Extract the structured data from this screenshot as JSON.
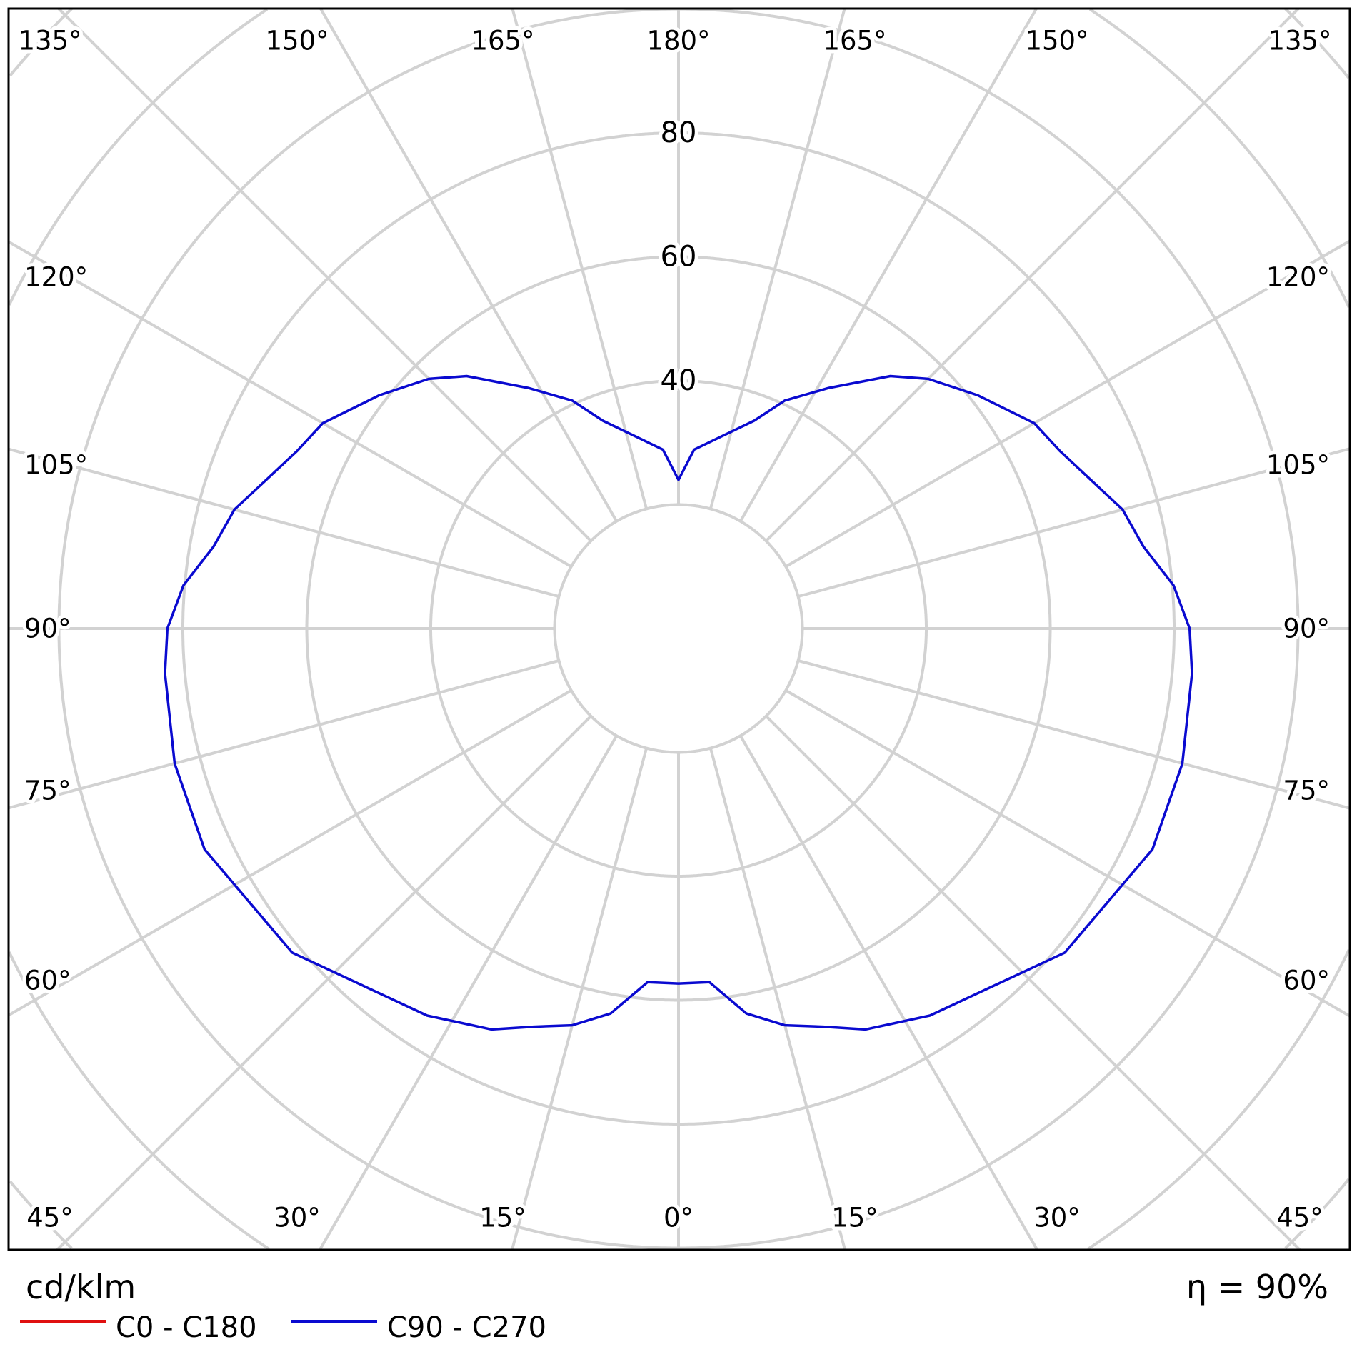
{
  "chart_data": {
    "type": "polar",
    "unit_label": "cd/klm",
    "efficiency_label": "η = 90%",
    "radial_ticks": [
      40,
      60,
      80
    ],
    "radial_grid": [
      20,
      40,
      60,
      80,
      100,
      120,
      140,
      160
    ],
    "angle_grid_step_deg": 15,
    "grid": true,
    "angle_labels": {
      "top": [
        "135°",
        "150°",
        "165°",
        "180°",
        "165°",
        "150°",
        "135°"
      ],
      "left": [
        "120°",
        "105°",
        "90°",
        "75°",
        "60°"
      ],
      "right": [
        "120°",
        "105°",
        "90°",
        "75°",
        "60°"
      ],
      "bottom": [
        "45°",
        "30°",
        "15°",
        "0°",
        "15°",
        "30°",
        "45°"
      ]
    },
    "legend_placement": "bottom-left",
    "series": [
      {
        "name": "C0 - C180",
        "color": "#e01010",
        "gamma": [],
        "values": []
      },
      {
        "name": "C90 - C270",
        "color": "#0a0ad0",
        "gamma": [
          0,
          5,
          10,
          15,
          20,
          25,
          33,
          50,
          65,
          75,
          85,
          90,
          95,
          100,
          105,
          115,
          120,
          128,
          135,
          140,
          148,
          155,
          160,
          175,
          180
        ],
        "values": [
          57.3,
          57.3,
          63.1,
          66.3,
          68.4,
          71.4,
          74.5,
          81.4,
          84.4,
          84.2,
          83.2,
          82.5,
          80.2,
          76.2,
          74.2,
          67.9,
          66.3,
          61.2,
          57.0,
          53.2,
          45.8,
          40.6,
          35.7,
          29.0,
          24.0
        ]
      }
    ]
  }
}
